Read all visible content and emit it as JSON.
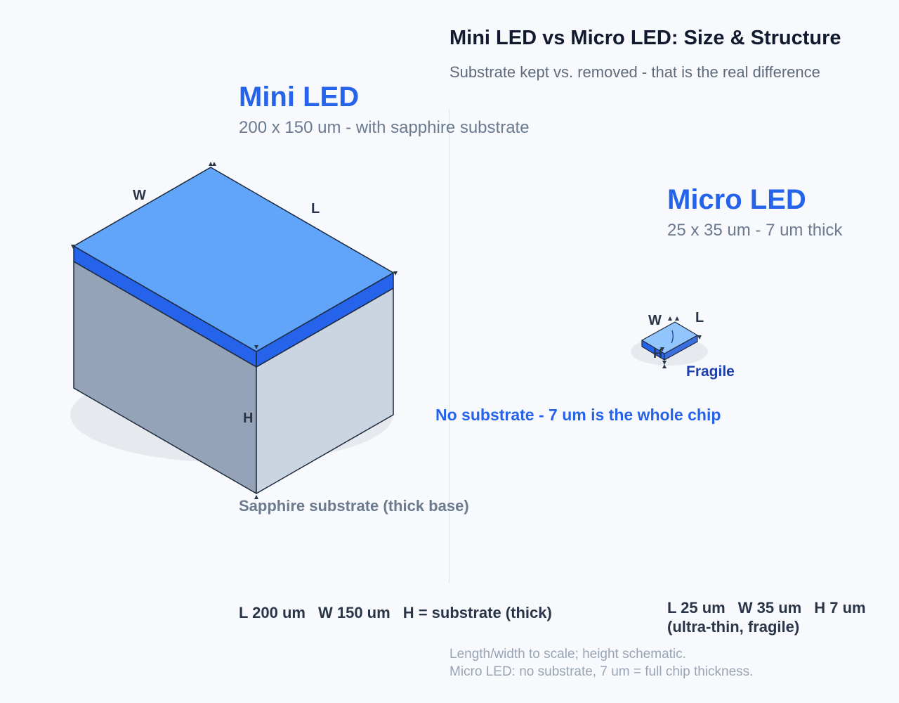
{
  "header": {
    "title": "Mini LED vs Micro LED: Size & Structure",
    "subtitle": "Substrate kept vs. removed - that is the real difference"
  },
  "mini": {
    "heading": "Mini LED",
    "subheading": "200 x 150 um  -  with sapphire substrate",
    "dim_w": "W",
    "dim_l": "L",
    "dim_h": "H",
    "base_label": "Sapphire substrate (thick base)",
    "spec_l": "L 200 um",
    "spec_w": "W 150 um",
    "spec_h": "H = substrate (thick)"
  },
  "micro": {
    "heading": "Micro LED",
    "subheading": "25 x 35 um  -  7 um thick",
    "dim_w": "W",
    "dim_l": "L",
    "dim_h": "H",
    "fragile_label": "Fragile",
    "note": "No substrate - 7 um is the whole chip",
    "spec_l": "L 25 um",
    "spec_w": "W 35 um",
    "spec_h": "H 7 um",
    "spec_note": "(ultra-thin, fragile)"
  },
  "footnotes": [
    "Length/width to scale; height schematic.",
    "Micro LED: no substrate, 7 um = full chip thickness."
  ],
  "colors": {
    "chip_top": "#60a5fa",
    "chip_layer": "#2563eb",
    "substrate_left": "#94a3b8",
    "substrate_right": "#cbd5e1",
    "micro_top": "#93c5fd",
    "accent": "#2563eb"
  }
}
